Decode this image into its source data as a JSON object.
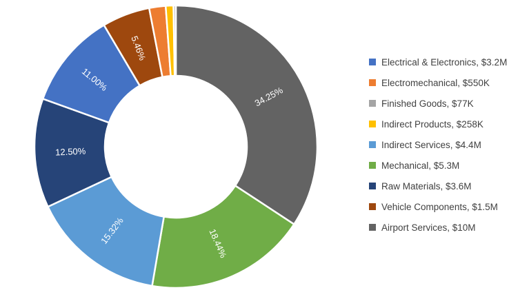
{
  "chart_data": {
    "type": "pie",
    "subtype": "donut",
    "title": "",
    "hole_ratio": 0.5,
    "start_angle_deg": 0,
    "direction": "clockwise",
    "sorted_by": "value-descending",
    "legend_position": "right",
    "categories": [
      "Electrical & Electronics",
      "Electromechanical",
      "Finished Goods",
      "Indirect Products",
      "Indirect Services",
      "Mechanical",
      "Raw Materials",
      "Vehicle Components",
      "Airport Services"
    ],
    "values_display": [
      "$3.2M",
      "$550K",
      "$77K",
      "$258K",
      "$4.4M",
      "$5.3M",
      "$3.6M",
      "$1.5M",
      "$10M"
    ],
    "value_musd": [
      3.2,
      0.55,
      0.077,
      0.258,
      4.4,
      5.3,
      3.6,
      1.5,
      10
    ],
    "percents": [
      11.0,
      1.88,
      0.26,
      0.88,
      15.32,
      18.44,
      12.5,
      5.46,
      34.25
    ],
    "percent_labels": [
      "11.00%",
      "",
      "",
      "",
      "15.32%",
      "18.44%",
      "12.50%",
      "5.46%",
      "34.25%"
    ],
    "colors": [
      "#4472C4",
      "#ED7D31",
      "#A5A5A5",
      "#FFC000",
      "#5B9BD5",
      "#70AD47",
      "#264478",
      "#9E480E",
      "#636363"
    ],
    "slice_gap_color": "#FFFFFF",
    "label_text_color": "#FFFFFF",
    "legend_text_color": "#404040"
  }
}
